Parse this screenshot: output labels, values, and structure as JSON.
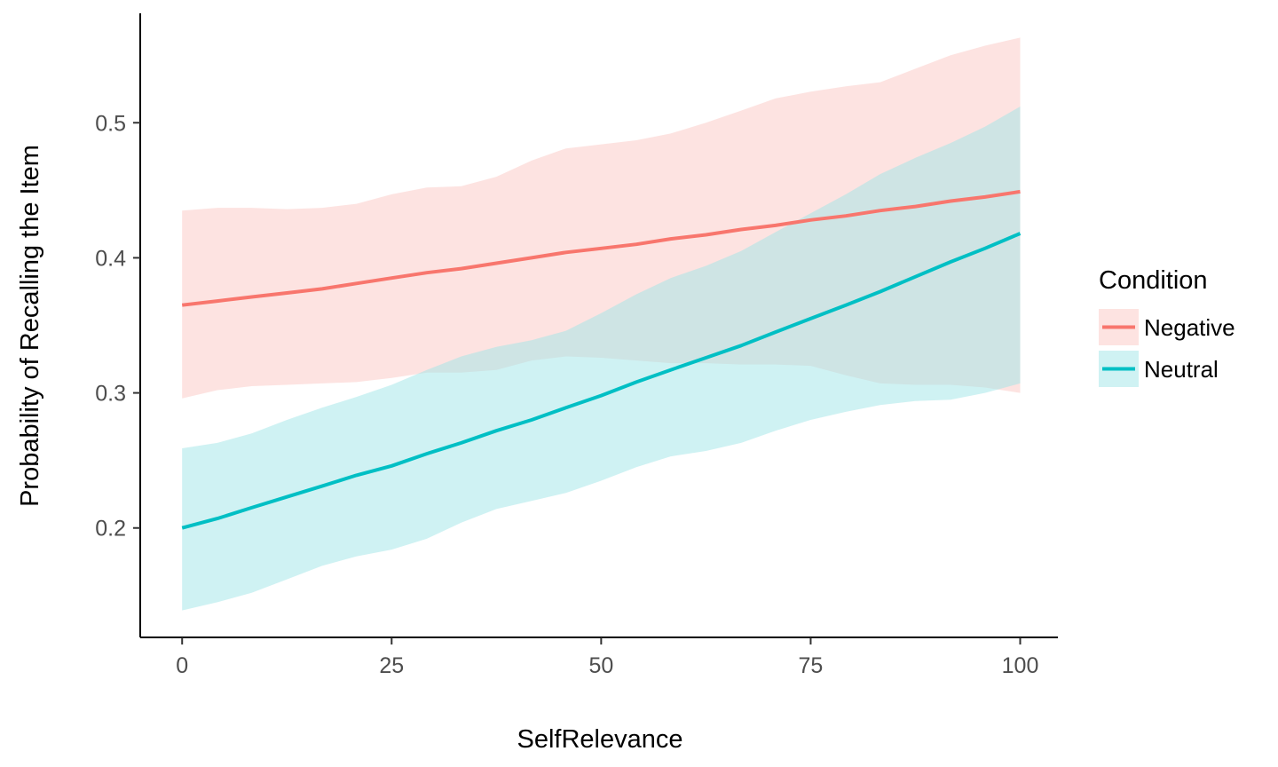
{
  "chart_data": {
    "type": "line",
    "xlabel": "SelfRelevance",
    "ylabel": "Probability of Recalling the Item",
    "xlim": [
      -5,
      104.5
    ],
    "ylim": [
      0.119,
      0.581
    ],
    "x_ticks": [
      0,
      25,
      50,
      75,
      100
    ],
    "x_tick_labels": [
      "0",
      "25",
      "50",
      "75",
      "100"
    ],
    "y_ticks": [
      0.2,
      0.3,
      0.4,
      0.5
    ],
    "y_tick_labels": [
      "0.2",
      "0.3",
      "0.4",
      "0.5"
    ],
    "grid": false,
    "legend": {
      "title": "Condition",
      "position": "right"
    },
    "series": [
      {
        "name": "Negative",
        "color": "#F8766D",
        "ribbon_color": "#FBC8C4",
        "x": [
          0,
          4.2,
          8.3,
          12.5,
          16.7,
          20.8,
          25,
          29.2,
          33.3,
          37.5,
          41.7,
          45.8,
          50,
          54.2,
          58.3,
          62.5,
          66.7,
          70.8,
          75,
          79.2,
          83.3,
          87.5,
          91.7,
          95.8,
          100
        ],
        "y": [
          0.365,
          0.368,
          0.371,
          0.374,
          0.377,
          0.381,
          0.385,
          0.389,
          0.392,
          0.396,
          0.4,
          0.404,
          0.407,
          0.41,
          0.414,
          0.417,
          0.421,
          0.424,
          0.428,
          0.431,
          0.435,
          0.438,
          0.442,
          0.445,
          0.449
        ],
        "lower": [
          0.296,
          0.302,
          0.305,
          0.306,
          0.307,
          0.308,
          0.311,
          0.315,
          0.315,
          0.317,
          0.324,
          0.327,
          0.326,
          0.324,
          0.322,
          0.322,
          0.321,
          0.321,
          0.32,
          0.313,
          0.307,
          0.306,
          0.306,
          0.304,
          0.3
        ],
        "upper": [
          0.435,
          0.437,
          0.437,
          0.436,
          0.437,
          0.44,
          0.447,
          0.452,
          0.453,
          0.46,
          0.472,
          0.481,
          0.484,
          0.487,
          0.492,
          0.5,
          0.509,
          0.518,
          0.523,
          0.527,
          0.53,
          0.54,
          0.55,
          0.557,
          0.563
        ]
      },
      {
        "name": "Neutral",
        "color": "#00BFC4",
        "ribbon_color": "#9FE5E7",
        "x": [
          0,
          4.2,
          8.3,
          12.5,
          16.7,
          20.8,
          25,
          29.2,
          33.3,
          37.5,
          41.7,
          45.8,
          50,
          54.2,
          58.3,
          62.5,
          66.7,
          70.8,
          75,
          79.2,
          83.3,
          87.5,
          91.7,
          95.8,
          100
        ],
        "y": [
          0.2,
          0.207,
          0.215,
          0.223,
          0.231,
          0.239,
          0.246,
          0.255,
          0.263,
          0.272,
          0.28,
          0.289,
          0.298,
          0.308,
          0.317,
          0.326,
          0.335,
          0.345,
          0.355,
          0.365,
          0.375,
          0.386,
          0.397,
          0.407,
          0.418
        ],
        "lower": [
          0.139,
          0.145,
          0.152,
          0.162,
          0.172,
          0.179,
          0.184,
          0.192,
          0.204,
          0.214,
          0.22,
          0.226,
          0.235,
          0.245,
          0.253,
          0.257,
          0.263,
          0.272,
          0.28,
          0.286,
          0.291,
          0.294,
          0.295,
          0.3,
          0.307
        ],
        "upper": [
          0.259,
          0.263,
          0.27,
          0.28,
          0.289,
          0.297,
          0.306,
          0.317,
          0.327,
          0.334,
          0.339,
          0.346,
          0.359,
          0.373,
          0.385,
          0.394,
          0.405,
          0.419,
          0.433,
          0.447,
          0.462,
          0.474,
          0.485,
          0.497,
          0.512
        ]
      }
    ]
  }
}
